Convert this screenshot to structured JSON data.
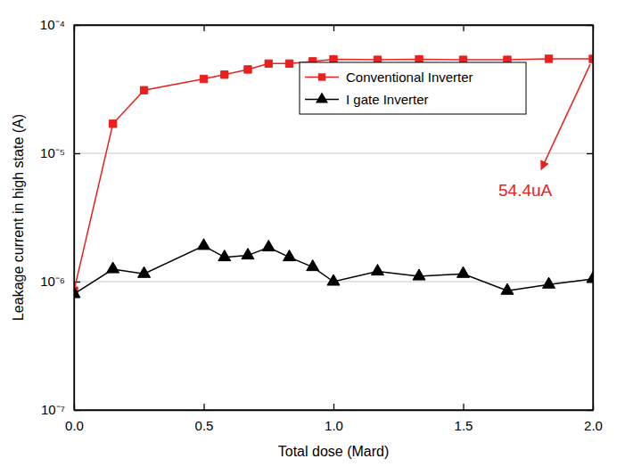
{
  "chart_data": {
    "type": "line",
    "x_label": "Total dose (Mard)",
    "y_label": "Leakage current in high state (A)",
    "x": [
      0,
      0.15,
      0.27,
      0.5,
      0.58,
      0.67,
      0.75,
      0.83,
      0.92,
      1.0,
      1.17,
      1.33,
      1.5,
      1.67,
      1.83,
      2.0
    ],
    "series": [
      {
        "name": "Conventional Inverter",
        "color": "#e8211e",
        "marker": "square",
        "line_style": "solid",
        "values": [
          8.5e-07,
          1.7e-05,
          3.1e-05,
          3.8e-05,
          4.1e-05,
          4.5e-05,
          5e-05,
          5e-05,
          5.2e-05,
          5.4e-05,
          5.35e-05,
          5.4e-05,
          5.35e-05,
          5.35e-05,
          5.45e-05,
          5.44e-05
        ]
      },
      {
        "name": "I gate Inverter",
        "color": "#000000",
        "marker": "triangle",
        "line_style": "solid",
        "values": [
          8e-07,
          1.25e-06,
          1.15e-06,
          1.9e-06,
          1.55e-06,
          1.6e-06,
          1.85e-06,
          1.55e-06,
          1.3e-06,
          1e-06,
          1.2e-06,
          1.1e-06,
          1.15e-06,
          8.5e-07,
          9.5e-07,
          1.05e-06
        ]
      }
    ],
    "xlim": [
      0,
      2.0
    ],
    "xticks": [
      {
        "value": 0,
        "label": "0.0"
      },
      0.5,
      {
        "value": 1.0,
        "label": "1.0"
      },
      1.5,
      {
        "value": 2.0,
        "label": "2.0"
      }
    ],
    "ylim": [
      1e-07,
      0.0001
    ],
    "yticks": [
      {
        "value": 1e-07,
        "label": "10⁻⁷"
      },
      {
        "value": 1e-06,
        "label": "10⁻⁶"
      },
      {
        "value": 1e-05,
        "label": "10⁻⁵"
      },
      {
        "value": 0.0001,
        "label": "10⁻⁴"
      }
    ],
    "log": "y",
    "grid": "y",
    "legend": "upper right",
    "annotations": [
      {
        "text": "54.4uA",
        "color": "#e8211e"
      }
    ]
  }
}
